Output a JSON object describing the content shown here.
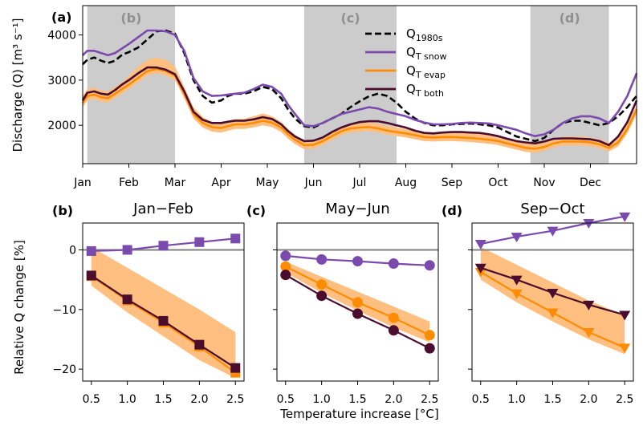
{
  "colors": {
    "q1980s": "#000000",
    "snow": "#7a4aad",
    "evap": "#ff8c00",
    "evap_band": "#ffbf80",
    "both": "#4a0d2e",
    "shade": "#cccccc",
    "zero": "#808080"
  },
  "top": {
    "panel_label": "(a)",
    "ylabel": "Discharge (Q) [m³ s⁻¹]",
    "months": [
      "Jan",
      "Feb",
      "Mar",
      "Apr",
      "May",
      "Jun",
      "Jul",
      "Aug",
      "Sep",
      "Oct",
      "Nov",
      "Dec"
    ],
    "yticks": [
      2000,
      3000,
      4000
    ],
    "shade_labels": [
      "(b)",
      "(c)",
      "(d)"
    ],
    "legend": [
      {
        "key": "q1980s",
        "base": "Q",
        "sub": "1980s"
      },
      {
        "key": "snow",
        "base": "Q",
        "sub": "T snow"
      },
      {
        "key": "evap",
        "base": "Q",
        "sub": "T evap"
      },
      {
        "key": "both",
        "base": "Q",
        "sub": "T both"
      }
    ]
  },
  "bottom": {
    "ylabel": "Relative Q change [%]",
    "xlabel": "Temperature increase [°C]",
    "xticks": [
      "0.5",
      "1.0",
      "1.5",
      "2.0",
      "2.5"
    ],
    "yticks": [
      "0",
      "−10",
      "−20"
    ],
    "panels": [
      {
        "label": "(b)",
        "title": "Jan−Feb"
      },
      {
        "label": "(c)",
        "title": "May−Jun"
      },
      {
        "label": "(d)",
        "title": "Sep−Oct"
      }
    ]
  },
  "chart_data": [
    {
      "type": "line",
      "title": "",
      "xlabel": "",
      "ylabel": "Discharge (Q) [m³ s⁻¹]",
      "x_unit": "month",
      "xlim": [
        0,
        12
      ],
      "ylim": [
        1150,
        4650
      ],
      "shaded_periods": [
        [
          0.1,
          2.0
        ],
        [
          4.8,
          6.8
        ],
        [
          9.7,
          11.4
        ]
      ],
      "x": [
        0,
        0.1,
        0.25,
        0.4,
        0.55,
        0.7,
        0.85,
        1.0,
        1.2,
        1.4,
        1.6,
        1.8,
        2.0,
        2.2,
        2.4,
        2.6,
        2.8,
        3.0,
        3.15,
        3.3,
        3.5,
        3.7,
        3.9,
        4.1,
        4.3,
        4.45,
        4.6,
        4.8,
        5.0,
        5.2,
        5.4,
        5.6,
        5.8,
        6.0,
        6.2,
        6.4,
        6.6,
        6.8,
        7.0,
        7.2,
        7.4,
        7.6,
        7.8,
        8.0,
        8.2,
        8.4,
        8.6,
        8.8,
        9.0,
        9.2,
        9.4,
        9.6,
        9.8,
        10.0,
        10.2,
        10.4,
        10.6,
        10.8,
        11.0,
        11.2,
        11.4,
        11.6,
        11.8,
        12.0
      ],
      "series": [
        {
          "name": "Q1980s",
          "style": "dashed",
          "values": [
            3350,
            3450,
            3500,
            3430,
            3380,
            3430,
            3560,
            3620,
            3720,
            3900,
            4080,
            4100,
            4030,
            3600,
            3000,
            2650,
            2500,
            2550,
            2650,
            2700,
            2700,
            2750,
            2850,
            2800,
            2600,
            2350,
            2150,
            1980,
            1950,
            2050,
            2150,
            2250,
            2400,
            2530,
            2640,
            2700,
            2650,
            2500,
            2300,
            2150,
            2050,
            2000,
            2000,
            2020,
            2030,
            2040,
            2020,
            2000,
            1950,
            1850,
            1750,
            1700,
            1650,
            1720,
            1900,
            2050,
            2100,
            2100,
            2050,
            2000,
            2050,
            2200,
            2400,
            2650
          ]
        },
        {
          "name": "QT snow",
          "values": [
            3550,
            3650,
            3650,
            3600,
            3550,
            3600,
            3700,
            3800,
            3950,
            4100,
            4100,
            4080,
            4000,
            3650,
            3050,
            2750,
            2650,
            2660,
            2680,
            2700,
            2720,
            2800,
            2900,
            2850,
            2700,
            2450,
            2250,
            2000,
            1980,
            2050,
            2150,
            2250,
            2300,
            2350,
            2400,
            2370,
            2300,
            2250,
            2200,
            2120,
            2060,
            2020,
            2020,
            2030,
            2050,
            2060,
            2050,
            2040,
            2000,
            1950,
            1900,
            1820,
            1760,
            1800,
            1900,
            2050,
            2150,
            2200,
            2200,
            2150,
            2050,
            2300,
            2650,
            3150
          ]
        },
        {
          "name": "QT evap",
          "values": [
            2500,
            2650,
            2680,
            2620,
            2600,
            2700,
            2800,
            2900,
            3050,
            3200,
            3250,
            3200,
            3100,
            2700,
            2250,
            2050,
            1960,
            1940,
            1980,
            2020,
            2020,
            2050,
            2100,
            2060,
            1950,
            1800,
            1680,
            1560,
            1570,
            1650,
            1760,
            1870,
            1930,
            1950,
            1960,
            1930,
            1880,
            1850,
            1820,
            1780,
            1740,
            1730,
            1740,
            1740,
            1730,
            1720,
            1700,
            1680,
            1650,
            1600,
            1550,
            1500,
            1480,
            1520,
            1600,
            1640,
            1640,
            1640,
            1620,
            1580,
            1500,
            1620,
            1920,
            2350
          ]
        },
        {
          "name": "QT both",
          "values": [
            2550,
            2720,
            2750,
            2700,
            2680,
            2780,
            2900,
            3000,
            3150,
            3280,
            3280,
            3230,
            3130,
            2750,
            2300,
            2120,
            2050,
            2050,
            2080,
            2100,
            2100,
            2130,
            2180,
            2140,
            2020,
            1870,
            1750,
            1650,
            1660,
            1730,
            1850,
            1950,
            2020,
            2070,
            2090,
            2090,
            2050,
            2000,
            1950,
            1880,
            1830,
            1820,
            1840,
            1850,
            1850,
            1840,
            1830,
            1800,
            1760,
            1700,
            1650,
            1620,
            1600,
            1640,
            1700,
            1710,
            1710,
            1700,
            1690,
            1650,
            1560,
            1750,
            2070,
            2550
          ]
        }
      ],
      "evap_band": {
        "upper": [
          2650,
          2800,
          2830,
          2770,
          2750,
          2850,
          2950,
          3100,
          3300,
          3450,
          3500,
          3450,
          3300,
          2850,
          2400,
          2180,
          2080,
          2050,
          2100,
          2140,
          2140,
          2200,
          2260,
          2200,
          2070,
          1920,
          1790,
          1650,
          1650,
          1720,
          1840,
          1960,
          2020,
          2050,
          2060,
          2040,
          1990,
          1950,
          1920,
          1880,
          1840,
          1840,
          1850,
          1860,
          1850,
          1840,
          1830,
          1800,
          1770,
          1720,
          1660,
          1610,
          1580,
          1620,
          1700,
          1750,
          1750,
          1750,
          1730,
          1690,
          1610,
          1740,
          2030,
          2450
        ],
        "lower": [
          2400,
          2550,
          2580,
          2520,
          2500,
          2600,
          2700,
          2800,
          2950,
          3100,
          3150,
          3100,
          3000,
          2600,
          2150,
          1950,
          1860,
          1840,
          1880,
          1920,
          1920,
          1950,
          2000,
          1960,
          1850,
          1700,
          1580,
          1470,
          1480,
          1560,
          1670,
          1780,
          1840,
          1860,
          1870,
          1840,
          1790,
          1760,
          1730,
          1690,
          1650,
          1640,
          1650,
          1650,
          1640,
          1630,
          1610,
          1590,
          1560,
          1510,
          1460,
          1410,
          1390,
          1430,
          1510,
          1550,
          1550,
          1550,
          1530,
          1490,
          1420,
          1530,
          1820,
          2250
        ]
      }
    },
    {
      "type": "line",
      "title": "Jan−Feb",
      "xlabel": "Temperature increase [°C]",
      "ylabel": "Relative Q change [%]",
      "xlim": [
        0.38,
        2.62
      ],
      "ylim": [
        -22,
        4.5
      ],
      "marker": "square",
      "x": [
        0.5,
        1.0,
        1.5,
        2.0,
        2.5
      ],
      "series": [
        {
          "name": "QT snow",
          "values": [
            -0.2,
            0.0,
            0.7,
            1.3,
            1.9
          ]
        },
        {
          "name": "QT evap",
          "values": [
            -4.4,
            -8.5,
            -12.2,
            -16.2,
            -20.6
          ]
        },
        {
          "name": "QT both",
          "values": [
            -4.3,
            -8.3,
            -11.9,
            -15.9,
            -19.8
          ]
        }
      ],
      "evap_band": {
        "upper": [
          0.5,
          -3.0,
          -6.5,
          -10.0,
          -13.8
        ],
        "lower": [
          -6.0,
          -10.5,
          -14.5,
          -18.5,
          -21.5
        ]
      }
    },
    {
      "type": "line",
      "title": "May−Jun",
      "xlabel": "Temperature increase [°C]",
      "ylabel": "",
      "xlim": [
        0.38,
        2.62
      ],
      "ylim": [
        -22,
        4.5
      ],
      "marker": "circle",
      "x": [
        0.5,
        1.0,
        1.5,
        2.0,
        2.5
      ],
      "series": [
        {
          "name": "QT snow",
          "values": [
            -1.0,
            -1.6,
            -1.9,
            -2.3,
            -2.6
          ]
        },
        {
          "name": "QT evap",
          "values": [
            -2.8,
            -5.8,
            -8.8,
            -11.4,
            -14.3
          ]
        },
        {
          "name": "QT both",
          "values": [
            -4.2,
            -7.7,
            -10.7,
            -13.5,
            -16.5
          ]
        }
      ],
      "evap_band": {
        "upper": [
          -2.0,
          -4.5,
          -7.0,
          -9.5,
          -12.0
        ],
        "lower": [
          -3.8,
          -7.2,
          -10.2,
          -13.0,
          -15.5
        ]
      }
    },
    {
      "type": "line",
      "title": "Sep−Oct",
      "xlabel": "Temperature increase [°C]",
      "ylabel": "",
      "xlim": [
        0.38,
        2.62
      ],
      "ylim": [
        -22,
        4.5
      ],
      "marker": "triangle-down",
      "x": [
        0.5,
        1.0,
        1.5,
        2.0,
        2.5
      ],
      "series": [
        {
          "name": "QT snow",
          "values": [
            1.0,
            2.2,
            3.2,
            4.5,
            5.6
          ]
        },
        {
          "name": "QT evap",
          "values": [
            -3.7,
            -7.3,
            -10.5,
            -13.8,
            -16.4
          ]
        },
        {
          "name": "QT both",
          "values": [
            -3.0,
            -5.0,
            -7.2,
            -9.2,
            -10.9
          ]
        }
      ],
      "evap_band": {
        "upper": [
          0.5,
          -2.5,
          -5.5,
          -8.5,
          -11.0
        ],
        "lower": [
          -5.0,
          -8.8,
          -12.0,
          -15.0,
          -17.5
        ]
      }
    }
  ]
}
